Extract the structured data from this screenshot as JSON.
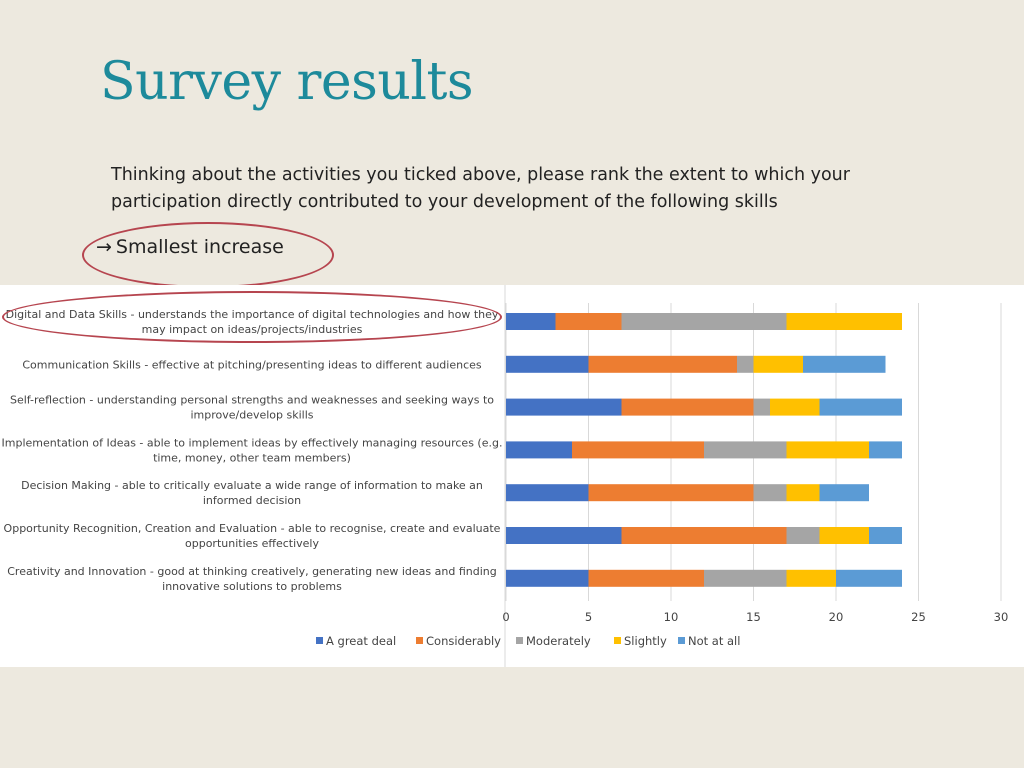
{
  "slide": {
    "title": "Survey results",
    "question": "Thinking about the activities you ticked above, please rank the extent to which your participation directly contributed to your development of the following skills",
    "callout": "Smallest increase",
    "callout_arrow": "→"
  },
  "chart_data": {
    "type": "bar",
    "orientation": "horizontal",
    "stacked": true,
    "title": "",
    "xlabel": "",
    "ylabel": "",
    "xlim": [
      0,
      30
    ],
    "xticks": [
      0,
      5,
      10,
      15,
      20,
      25,
      30
    ],
    "grid": true,
    "legend_position": "bottom",
    "categories": [
      [
        "Digital and Data Skills - understands the importance of digital technologies and how they",
        "may impact on ideas/projects/industries"
      ],
      [
        "Communication Skills - effective at pitching/presenting ideas to different audiences"
      ],
      [
        "Self-reflection - understanding personal strengths and weaknesses and seeking ways to",
        "improve/develop skills"
      ],
      [
        "Implementation of Ideas - able to implement ideas by effectively managing resources (e.g.",
        "time, money, other team members)"
      ],
      [
        "Decision Making - able to critically evaluate a wide range of information to make an",
        "informed decision"
      ],
      [
        "Opportunity Recognition, Creation and Evaluation - able to recognise, create and evaluate",
        "opportunities effectively"
      ],
      [
        "Creativity and Innovation - good at thinking creatively, generating new ideas and finding",
        "innovative solutions to problems"
      ]
    ],
    "series": [
      {
        "name": "A great deal",
        "color": "#4472c4",
        "values": [
          3,
          5,
          7,
          4,
          5,
          7,
          5
        ]
      },
      {
        "name": "Considerably",
        "color": "#ed7d31",
        "values": [
          4,
          9,
          8,
          8,
          10,
          10,
          7
        ]
      },
      {
        "name": "Moderately",
        "color": "#a5a5a5",
        "values": [
          10,
          1,
          1,
          5,
          2,
          2,
          5
        ]
      },
      {
        "name": "Slightly",
        "color": "#ffc000",
        "values": [
          7,
          3,
          3,
          5,
          2,
          3,
          3
        ]
      },
      {
        "name": "Not at all",
        "color": "#5b9bd5",
        "values": [
          0,
          5,
          5,
          2,
          3,
          2,
          4
        ]
      }
    ]
  }
}
